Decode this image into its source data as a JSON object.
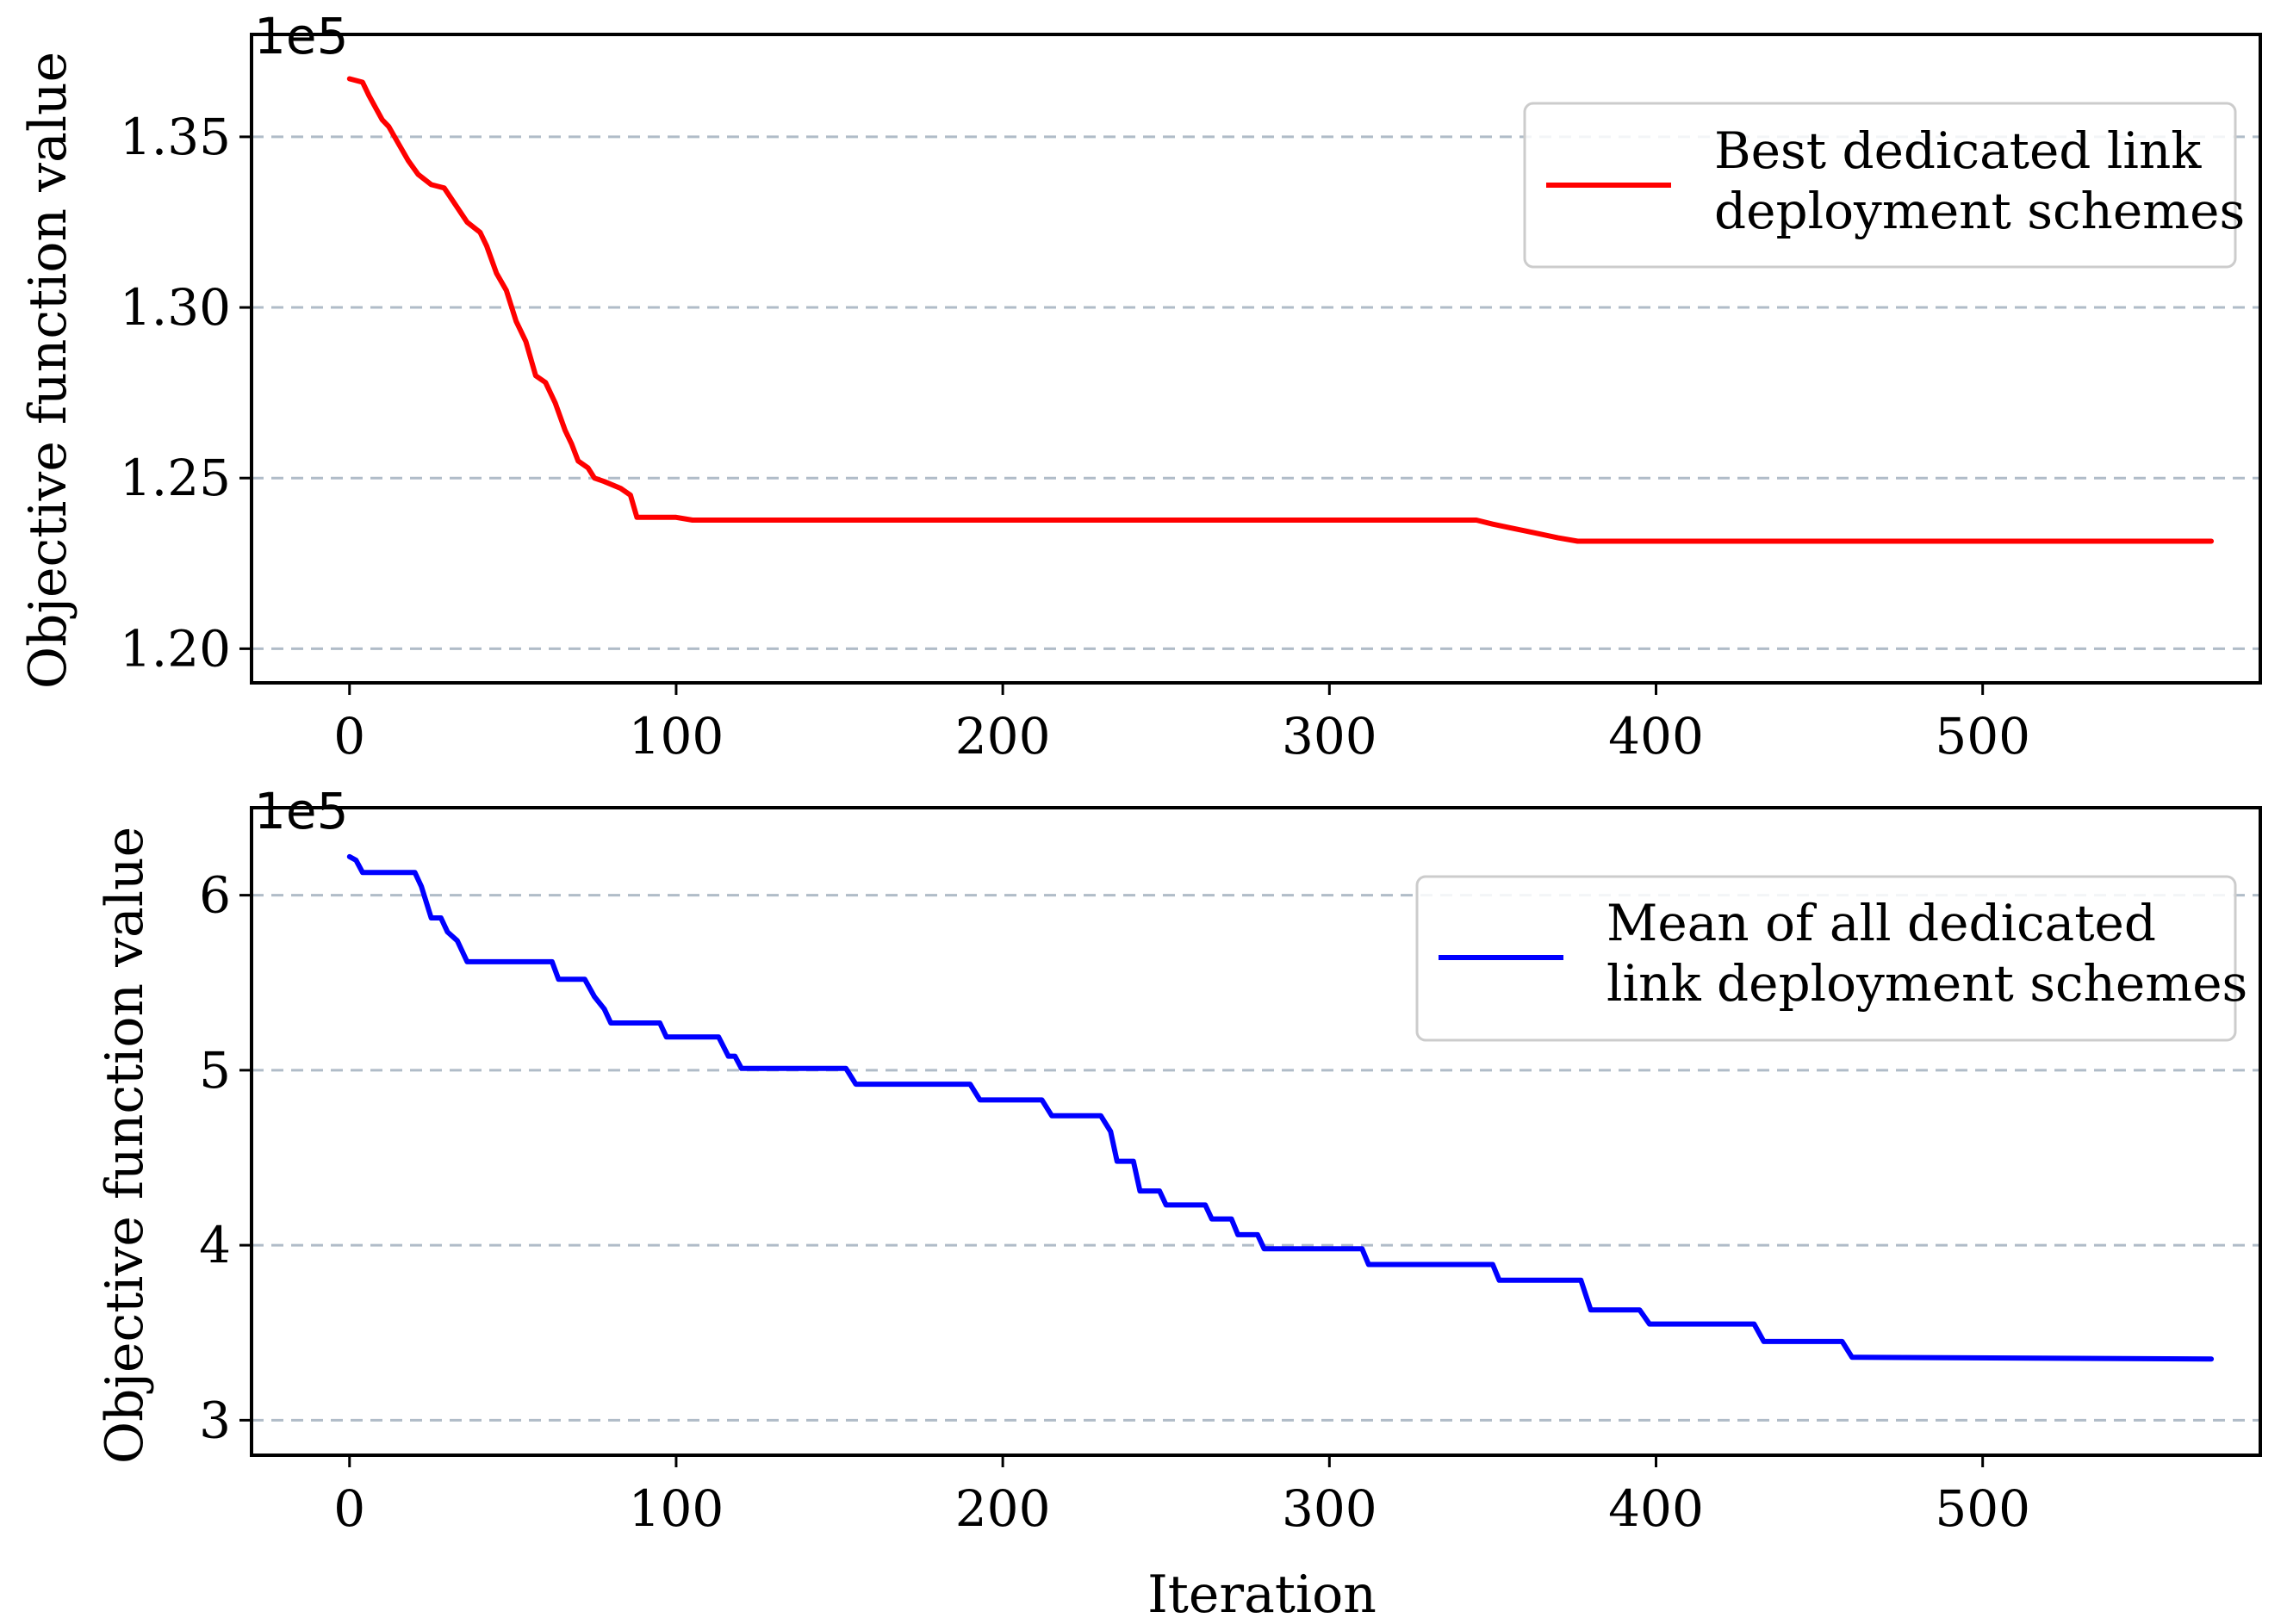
{
  "chart_data": [
    {
      "type": "line",
      "title": "",
      "xlabel": "",
      "ylabel": "Objective function value",
      "y_offset_label": "1e5",
      "xlim": [
        -30,
        585
      ],
      "ylim": [
        1.19,
        1.38
      ],
      "xticks": [
        0,
        100,
        200,
        300,
        400,
        500
      ],
      "xtick_labels": [
        "0",
        "100",
        "200",
        "300",
        "400",
        "500"
      ],
      "yticks": [
        1.2,
        1.25,
        1.3,
        1.35
      ],
      "ytick_labels": [
        "1.20",
        "1.25",
        "1.30",
        "1.35"
      ],
      "grid": "horizontal dashed",
      "legend_position": "upper right",
      "series": [
        {
          "legend_lines": [
            "Best dedicated link",
            "deployment schemes"
          ],
          "color": "#ff0000",
          "x": [
            0,
            4,
            6,
            10,
            12,
            15,
            18,
            21,
            25,
            29,
            36,
            40,
            42,
            45,
            48,
            51,
            54,
            57,
            60,
            63,
            66,
            68,
            70,
            73,
            75,
            78,
            83,
            86,
            88,
            100,
            105,
            345,
            350,
            355,
            360,
            370,
            376,
            380,
            570
          ],
          "y": [
            1.367,
            1.366,
            1.362,
            1.355,
            1.353,
            1.348,
            1.343,
            1.339,
            1.336,
            1.335,
            1.325,
            1.322,
            1.318,
            1.31,
            1.305,
            1.296,
            1.29,
            1.28,
            1.278,
            1.272,
            1.264,
            1.26,
            1.255,
            1.253,
            1.25,
            1.249,
            1.247,
            1.245,
            1.2385,
            1.2385,
            1.2377,
            1.2377,
            1.2365,
            1.2355,
            1.2345,
            1.2325,
            1.2315,
            1.2315,
            1.2315
          ]
        }
      ]
    },
    {
      "type": "line",
      "title": "",
      "xlabel": "Iteration",
      "ylabel": "Objective function value",
      "y_offset_label": "1e5",
      "xlim": [
        -30,
        585
      ],
      "ylim": [
        2.8,
        6.5
      ],
      "xticks": [
        0,
        100,
        200,
        300,
        400,
        500
      ],
      "xtick_labels": [
        "0",
        "100",
        "200",
        "300",
        "400",
        "500"
      ],
      "yticks": [
        3,
        4,
        5,
        6
      ],
      "ytick_labels": [
        "3",
        "4",
        "5",
        "6"
      ],
      "grid": "horizontal dashed",
      "legend_position": "upper right",
      "series": [
        {
          "legend_lines": [
            "Mean of all dedicated",
            "link deployment schemes"
          ],
          "color": "#0000ff",
          "x": [
            0,
            2,
            4,
            20,
            22,
            25,
            28,
            30,
            33,
            36,
            62,
            64,
            72,
            75,
            78,
            80,
            95,
            97,
            113,
            116,
            118,
            120,
            152,
            155,
            190,
            193,
            212,
            215,
            230,
            233,
            235,
            240,
            242,
            248,
            250,
            262,
            264,
            270,
            272,
            278,
            280,
            310,
            312,
            350,
            352,
            377,
            380,
            395,
            398,
            430,
            433,
            457,
            460,
            570
          ],
          "y": [
            6.22,
            6.2,
            6.13,
            6.13,
            6.05,
            5.87,
            5.87,
            5.79,
            5.74,
            5.62,
            5.62,
            5.52,
            5.52,
            5.42,
            5.35,
            5.27,
            5.27,
            5.19,
            5.19,
            5.08,
            5.08,
            5.01,
            5.01,
            4.92,
            4.92,
            4.83,
            4.83,
            4.74,
            4.74,
            4.65,
            4.48,
            4.48,
            4.31,
            4.31,
            4.23,
            4.23,
            4.15,
            4.15,
            4.06,
            4.06,
            3.98,
            3.98,
            3.89,
            3.89,
            3.8,
            3.8,
            3.63,
            3.63,
            3.55,
            3.55,
            3.45,
            3.45,
            3.36,
            3.35
          ]
        }
      ]
    }
  ]
}
